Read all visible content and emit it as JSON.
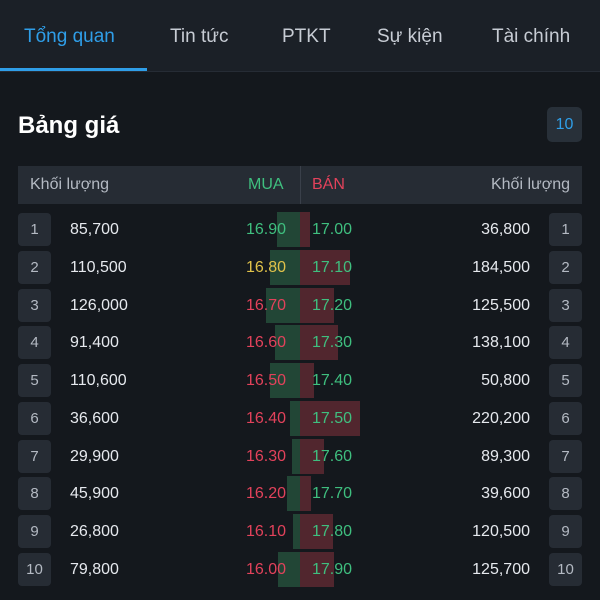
{
  "tabs": [
    "Tổng quan",
    "Tin tức",
    "PTKT",
    "Sự kiện",
    "Tài chính"
  ],
  "active_tab": 0,
  "title": "Bảng giá",
  "depth": "10",
  "table_header": {
    "buy_volume": "Khối lượng",
    "buy": "MUA",
    "sell": "BÁN",
    "sell_volume": "Khối lượng"
  },
  "colors": {
    "accent": "#2f9ee8",
    "up": "#3fbf7f",
    "down": "#e2425b",
    "reference": "#e0c24a"
  },
  "rows": [
    {
      "level": "1",
      "buy_volume": "85,700",
      "buy_price": "16.90",
      "buy_color": "up",
      "sell_price": "17.00",
      "sell_color": "up",
      "sell_volume": "36,800",
      "level_r": "1"
    },
    {
      "level": "2",
      "buy_volume": "110,500",
      "buy_price": "16.80",
      "buy_color": "ref",
      "sell_price": "17.10",
      "sell_color": "up",
      "sell_volume": "184,500",
      "level_r": "2"
    },
    {
      "level": "3",
      "buy_volume": "126,000",
      "buy_price": "16.70",
      "buy_color": "down",
      "sell_price": "17.20",
      "sell_color": "up",
      "sell_volume": "125,500",
      "level_r": "3"
    },
    {
      "level": "4",
      "buy_volume": "91,400",
      "buy_price": "16.60",
      "buy_color": "down",
      "sell_price": "17.30",
      "sell_color": "up",
      "sell_volume": "138,100",
      "level_r": "4"
    },
    {
      "level": "5",
      "buy_volume": "110,600",
      "buy_price": "16.50",
      "buy_color": "down",
      "sell_price": "17.40",
      "sell_color": "up",
      "sell_volume": "50,800",
      "level_r": "5"
    },
    {
      "level": "6",
      "buy_volume": "36,600",
      "buy_price": "16.40",
      "buy_color": "down",
      "sell_price": "17.50",
      "sell_color": "up",
      "sell_volume": "220,200",
      "level_r": "6"
    },
    {
      "level": "7",
      "buy_volume": "29,900",
      "buy_price": "16.30",
      "buy_color": "down",
      "sell_price": "17.60",
      "sell_color": "up",
      "sell_volume": "89,300",
      "level_r": "7"
    },
    {
      "level": "8",
      "buy_volume": "45,900",
      "buy_price": "16.20",
      "buy_color": "down",
      "sell_price": "17.70",
      "sell_color": "up",
      "sell_volume": "39,600",
      "level_r": "8"
    },
    {
      "level": "9",
      "buy_volume": "26,800",
      "buy_price": "16.10",
      "buy_color": "down",
      "sell_price": "17.80",
      "sell_color": "up",
      "sell_volume": "120,500",
      "level_r": "9"
    },
    {
      "level": "10",
      "buy_volume": "79,800",
      "buy_price": "16.00",
      "buy_color": "down",
      "sell_price": "17.90",
      "sell_color": "up",
      "sell_volume": "125,700",
      "level_r": "10"
    }
  ]
}
